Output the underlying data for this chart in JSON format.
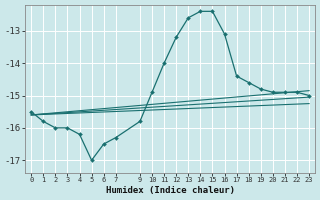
{
  "xlabel": "Humidex (Indice chaleur)",
  "bg_color": "#cce8ea",
  "grid_color": "#ffffff",
  "line_color": "#1a7070",
  "xlim": [
    -0.5,
    23.5
  ],
  "ylim": [
    -17.4,
    -12.2
  ],
  "yticks": [
    -17,
    -16,
    -15,
    -14,
    -13
  ],
  "xticks": [
    0,
    1,
    2,
    3,
    4,
    5,
    6,
    7,
    9,
    10,
    11,
    12,
    13,
    14,
    15,
    16,
    17,
    18,
    19,
    20,
    21,
    22,
    23
  ],
  "main_series": {
    "x": [
      0,
      1,
      2,
      3,
      4,
      5,
      6,
      7,
      9,
      10,
      11,
      12,
      13,
      14,
      15,
      16,
      17,
      18,
      19,
      20,
      21,
      22,
      23
    ],
    "y": [
      -15.5,
      -15.8,
      -16.0,
      -16.0,
      -16.2,
      -17.0,
      -16.5,
      -16.3,
      -15.8,
      -14.9,
      -14.0,
      -13.2,
      -12.6,
      -12.4,
      -12.4,
      -13.1,
      -14.4,
      -14.6,
      -14.8,
      -14.9,
      -14.9,
      -14.9,
      -15.0
    ]
  },
  "trend_lines": [
    {
      "x": [
        0,
        23
      ],
      "y": [
        -15.6,
        -14.85
      ]
    },
    {
      "x": [
        0,
        23
      ],
      "y": [
        -15.6,
        -15.05
      ]
    },
    {
      "x": [
        0,
        23
      ],
      "y": [
        -15.6,
        -15.25
      ]
    }
  ]
}
